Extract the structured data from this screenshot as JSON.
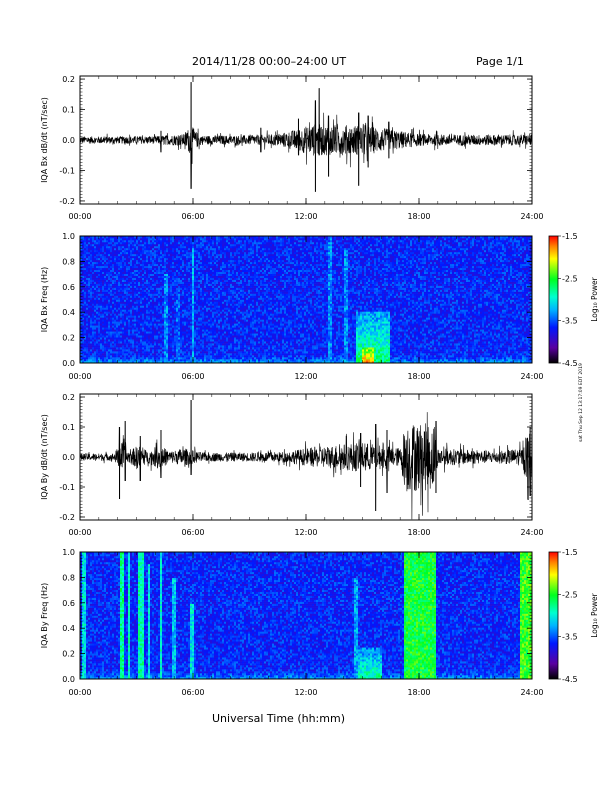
{
  "header": {
    "title": "2014/11/28  00:00–24:00 UT",
    "page": "Page 1/1"
  },
  "footer": {
    "xlabel": "Universal Time (hh:mm)"
  },
  "side_note": "sat Thu Sep 12 13:17:09 EDT 2019",
  "chart_data": [
    {
      "type": "line",
      "ylabel": "IQA Bx dB/dt (nT/sec)",
      "xlim": [
        0,
        24
      ],
      "ylim": [
        -0.21,
        0.21
      ],
      "yticks": [
        "0.2",
        "0.1",
        "0.0",
        "-0.1",
        "-0.2"
      ],
      "ytick_values": [
        0.2,
        0.1,
        0.0,
        -0.1,
        -0.2
      ],
      "xticks": [
        "00:00",
        "06:00",
        "12:00",
        "18:00",
        "24:00"
      ],
      "envelope": {
        "hours": [
          0,
          2,
          4,
          5.5,
          5.9,
          6.1,
          6.5,
          9,
          10.5,
          11.5,
          12.2,
          12.6,
          13,
          14,
          14.8,
          15.5,
          16.5,
          17.5,
          18,
          20,
          22,
          24
        ],
        "baseline": [
          0.012,
          0.012,
          0.013,
          0.02,
          0.05,
          0.03,
          0.015,
          0.015,
          0.02,
          0.035,
          0.05,
          0.055,
          0.05,
          0.05,
          0.05,
          0.045,
          0.035,
          0.025,
          0.02,
          0.018,
          0.018,
          0.018
        ]
      },
      "spikes": [
        {
          "hour": 5.9,
          "max": 0.19,
          "min": -0.16
        },
        {
          "hour": 4.3,
          "max": 0.03,
          "min": -0.04
        },
        {
          "hour": 12.5,
          "max": 0.13,
          "min": -0.17
        },
        {
          "hour": 13.2,
          "max": 0.08,
          "min": -0.12
        },
        {
          "hour": 12.7,
          "max": 0.17,
          "min": -0.05
        },
        {
          "hour": 14.8,
          "max": 0.09,
          "min": -0.15
        },
        {
          "hour": 15.3,
          "max": 0.08,
          "min": -0.09
        },
        {
          "hour": 11.6,
          "max": 0.07,
          "min": -0.05
        },
        {
          "hour": 9.6,
          "max": 0.04,
          "min": -0.04
        },
        {
          "hour": 16.4,
          "max": 0.06,
          "min": -0.06
        }
      ]
    },
    {
      "type": "heatmap",
      "ylabel": "IQA Bx Freq (Hz)",
      "xlim": [
        0,
        24
      ],
      "ylim": [
        0,
        1.0
      ],
      "yticks": [
        "1.0",
        "0.8",
        "0.6",
        "0.4",
        "0.2",
        "0.0"
      ],
      "ytick_values": [
        1.0,
        0.8,
        0.6,
        0.4,
        0.2,
        0.0
      ],
      "xticks": [
        "00:00",
        "06:00",
        "12:00",
        "18:00",
        "24:00"
      ],
      "colorbar": {
        "label": "Log₁₀ Power",
        "ticks": [
          "-1.5",
          "-2.5",
          "-3.5",
          "-4.5"
        ],
        "range": [
          -4.5,
          -1.5
        ]
      },
      "features": [
        {
          "t0": 4.5,
          "t1": 4.7,
          "fmax": 0.7,
          "level": -3.3
        },
        {
          "t0": 5.1,
          "t1": 5.3,
          "fmax": 0.6,
          "level": -3.4
        },
        {
          "t0": 5.9,
          "t1": 6.05,
          "fmax": 0.9,
          "level": -3.2
        },
        {
          "t0": 13.2,
          "t1": 13.4,
          "fmax": 1.0,
          "level": -3.3
        },
        {
          "t0": 14.0,
          "t1": 14.2,
          "fmax": 0.9,
          "level": -3.3
        },
        {
          "t0": 14.7,
          "t1": 16.5,
          "fmax": 0.4,
          "level": -2.7
        },
        {
          "t0": 15.0,
          "t1": 15.6,
          "fmax": 0.12,
          "level": -1.8
        }
      ]
    },
    {
      "type": "line",
      "ylabel": "IQA By dB/dt (nT/sec)",
      "xlim": [
        0,
        24
      ],
      "ylim": [
        -0.21,
        0.21
      ],
      "yticks": [
        "0.2",
        "0.1",
        "0.0",
        "-0.1",
        "-0.2"
      ],
      "ytick_values": [
        0.2,
        0.1,
        0.0,
        -0.1,
        -0.2
      ],
      "xticks": [
        "00:00",
        "06:00",
        "12:00",
        "18:00",
        "24:00"
      ],
      "envelope": {
        "hours": [
          0,
          1.8,
          2.2,
          2.6,
          3.1,
          3.6,
          4.2,
          4.8,
          5.5,
          6.5,
          9,
          11,
          12,
          13.5,
          14.8,
          16,
          17,
          17.3,
          18.8,
          19,
          22,
          23.5,
          23.7,
          24
        ],
        "baseline": [
          0.012,
          0.012,
          0.05,
          0.02,
          0.04,
          0.02,
          0.04,
          0.02,
          0.03,
          0.015,
          0.015,
          0.018,
          0.03,
          0.04,
          0.05,
          0.04,
          0.03,
          0.12,
          0.11,
          0.03,
          0.02,
          0.03,
          0.08,
          0.09
        ]
      },
      "spikes": [
        {
          "hour": 2.1,
          "max": 0.1,
          "min": -0.14
        },
        {
          "hour": 2.4,
          "max": 0.12,
          "min": -0.08
        },
        {
          "hour": 3.2,
          "max": 0.07,
          "min": -0.08
        },
        {
          "hour": 4.3,
          "max": 0.09,
          "min": -0.07
        },
        {
          "hour": 5.9,
          "max": 0.19,
          "min": -0.06
        },
        {
          "hour": 15.7,
          "max": 0.11,
          "min": -0.18
        },
        {
          "hour": 16.3,
          "max": 0.09,
          "min": -0.12
        },
        {
          "hour": 14.9,
          "max": 0.08,
          "min": -0.1
        },
        {
          "hour": 18.9,
          "max": 0.12,
          "min": -0.12
        },
        {
          "hour": 23.9,
          "max": 0.1,
          "min": -0.13
        }
      ]
    },
    {
      "type": "heatmap",
      "ylabel": "IQA By Freq (Hz)",
      "xlim": [
        0,
        24
      ],
      "ylim": [
        0,
        1.0
      ],
      "yticks": [
        "1.0",
        "0.8",
        "0.6",
        "0.4",
        "0.2",
        "0.0"
      ],
      "ytick_values": [
        1.0,
        0.8,
        0.6,
        0.4,
        0.2,
        0.0
      ],
      "xticks": [
        "00:00",
        "06:00",
        "12:00",
        "18:00",
        "24:00"
      ],
      "colorbar": {
        "label": "Log₁₀ Power",
        "ticks": [
          "-1.5",
          "-2.5",
          "-3.5",
          "-4.5"
        ],
        "range": [
          -4.5,
          -1.5
        ]
      },
      "features": [
        {
          "t0": 0.15,
          "t1": 0.3,
          "fmax": 1.0,
          "level": -3.0
        },
        {
          "t0": 2.1,
          "t1": 2.35,
          "fmax": 1.0,
          "level": -2.7
        },
        {
          "t0": 2.5,
          "t1": 2.7,
          "fmax": 1.0,
          "level": -2.9
        },
        {
          "t0": 3.1,
          "t1": 3.35,
          "fmax": 1.0,
          "level": -2.8
        },
        {
          "t0": 3.6,
          "t1": 3.75,
          "fmax": 0.9,
          "level": -3.0
        },
        {
          "t0": 4.2,
          "t1": 4.4,
          "fmax": 1.0,
          "level": -2.9
        },
        {
          "t0": 4.9,
          "t1": 5.05,
          "fmax": 0.8,
          "level": -3.1
        },
        {
          "t0": 5.8,
          "t1": 6.0,
          "fmax": 0.6,
          "level": -3.0
        },
        {
          "t0": 14.5,
          "t1": 14.8,
          "fmax": 0.8,
          "level": -3.2
        },
        {
          "t0": 14.8,
          "t1": 16.0,
          "fmax": 0.25,
          "level": -2.8
        },
        {
          "t0": 17.2,
          "t1": 18.9,
          "fmax": 1.0,
          "level": -2.5
        },
        {
          "t0": 23.4,
          "t1": 24.0,
          "fmax": 1.0,
          "level": -2.4
        }
      ]
    }
  ]
}
